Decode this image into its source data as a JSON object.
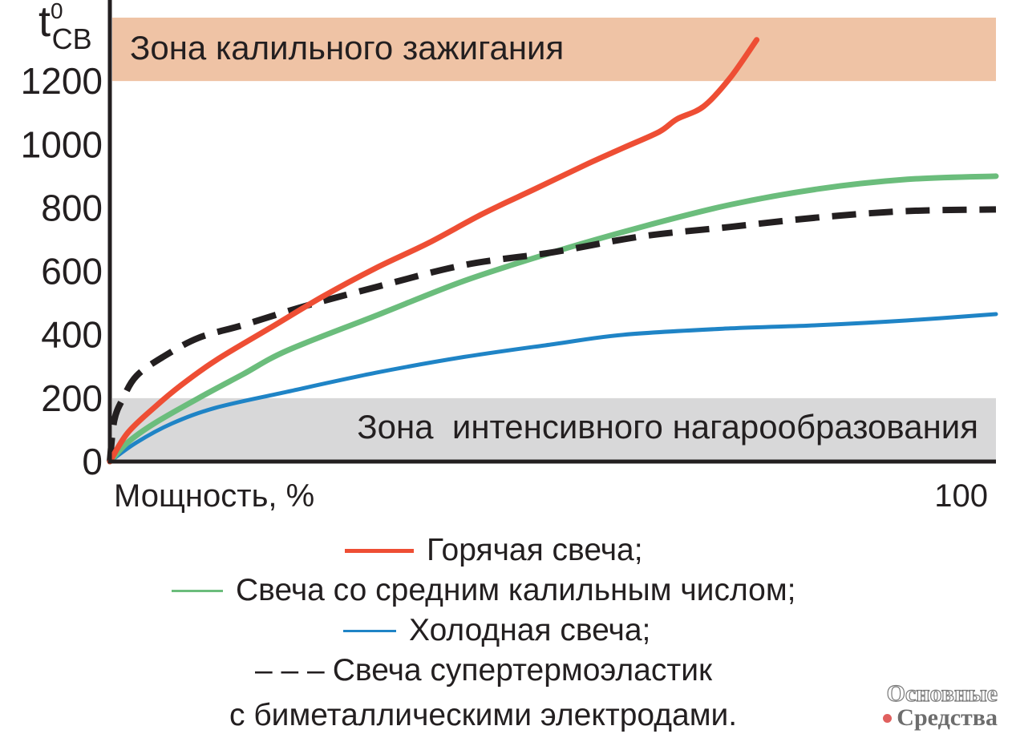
{
  "chart_data": {
    "type": "line",
    "ylabel": "t",
    "ylabel_sup": "0",
    "ylabel_sub": "СВ",
    "xlabel": "Мощность, %",
    "x_end_label": "100",
    "xlim": [
      0,
      100
    ],
    "ylim": [
      0,
      1400
    ],
    "yticks": [
      "0",
      "200",
      "400",
      "600",
      "800",
      "1000",
      "1200"
    ],
    "zones": [
      {
        "name": "Зона калильного зажигания",
        "from": 1200,
        "to": 1400,
        "color": "#efc3a5"
      },
      {
        "name": "Зона  интенсивного нагарообразования",
        "from": 0,
        "to": 200,
        "color": "#d8d8d9"
      }
    ],
    "series": [
      {
        "name": "Горячая свеча;",
        "color": "#ee4e34",
        "style": "solid",
        "x": [
          0,
          2,
          5,
          8,
          12,
          18,
          24,
          30,
          36,
          42,
          48,
          54,
          58,
          62,
          64,
          67,
          70,
          73
        ],
        "y": [
          0,
          90,
          170,
          240,
          320,
          420,
          520,
          610,
          690,
          780,
          860,
          940,
          990,
          1040,
          1080,
          1120,
          1210,
          1330
        ]
      },
      {
        "name": "Свеча со средним калильным числом;",
        "color": "#6bbd7c",
        "style": "solid",
        "x": [
          0,
          2,
          5,
          10,
          15,
          20,
          30,
          40,
          50,
          60,
          70,
          80,
          90,
          100
        ],
        "y": [
          0,
          60,
          120,
          200,
          275,
          350,
          460,
          570,
          660,
          740,
          810,
          860,
          890,
          900
        ]
      },
      {
        "name": "Холодная свеча;",
        "color": "#1f84c6",
        "style": "solid",
        "x": [
          0,
          3,
          7,
          12,
          20,
          30,
          40,
          50,
          58,
          70,
          80,
          90,
          100
        ],
        "y": [
          0,
          60,
          120,
          170,
          220,
          280,
          330,
          370,
          400,
          420,
          430,
          445,
          465
        ]
      },
      {
        "name": "Свеча супертермоэластик",
        "name_line2": "с биметаллическими электродами.",
        "color": "#231f20",
        "style": "dashed",
        "x": [
          0,
          0.5,
          1.5,
          3,
          6,
          10,
          15,
          22,
          30,
          40,
          50,
          60,
          70,
          80,
          90,
          100
        ],
        "y": [
          0,
          130,
          200,
          270,
          330,
          390,
          430,
          490,
          550,
          620,
          660,
          710,
          740,
          770,
          790,
          795
        ]
      }
    ]
  },
  "legend": {
    "hot_marker": "———",
    "dash_marker": "– – –"
  },
  "watermark": {
    "line1": "Основные",
    "line2": "Средства",
    "dot_color": "#e0605e"
  }
}
